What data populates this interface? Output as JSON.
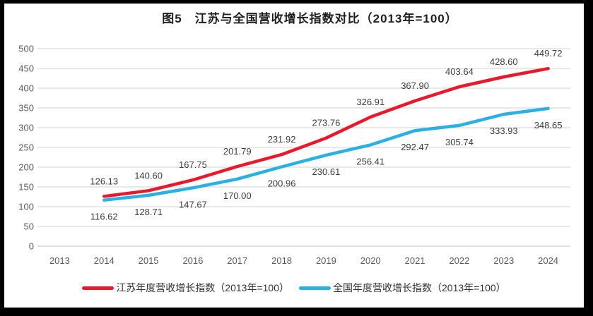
{
  "title": "图5　江苏与全国营收增长指数对比（2013年=100）",
  "chart_data": {
    "type": "line",
    "title": "图5　江苏与全国营收增长指数对比（2013年=100）",
    "categories": [
      "2013",
      "2014",
      "2015",
      "2016",
      "2017",
      "2018",
      "2019",
      "2020",
      "2021",
      "2022",
      "2023",
      "2024"
    ],
    "series": [
      {
        "key": "jiangsu",
        "name": "江苏年度营收增长指数（2013年=100）",
        "color": "#e8192c",
        "label_position": "above",
        "values": [
          null,
          126.13,
          140.6,
          167.75,
          201.79,
          231.92,
          273.76,
          326.91,
          367.9,
          403.64,
          428.6,
          449.72
        ]
      },
      {
        "key": "national",
        "name": "全国年度营收增长指数（2013年=100）",
        "color": "#2bb0e3",
        "label_position": "below",
        "values": [
          null,
          116.62,
          128.71,
          147.67,
          170.0,
          200.96,
          230.61,
          256.41,
          292.47,
          305.74,
          333.93,
          348.65
        ]
      }
    ],
    "ylim": [
      0,
      500
    ],
    "yticks": [
      0,
      50,
      100,
      150,
      200,
      250,
      300,
      350,
      400,
      450,
      500
    ],
    "grid": true,
    "data_labels": true,
    "decimals": 2,
    "legend_position": "bottom",
    "xlabel": "",
    "ylabel": ""
  },
  "legend": {
    "items": [
      {
        "label": "江苏年度营收增长指数（2013年=100）",
        "color": "#e8192c"
      },
      {
        "label": "全国年度营收增长指数（2013年=100）",
        "color": "#2bb0e3"
      }
    ]
  },
  "colors": {
    "background": "#000000",
    "panel": "#ffffff",
    "gridline": "#d9d9d9",
    "axis_line": "#c9c9c9",
    "axis_text": "#595959",
    "data_label_text": "#3d3d3d",
    "title_text": "#1f1f1f"
  }
}
